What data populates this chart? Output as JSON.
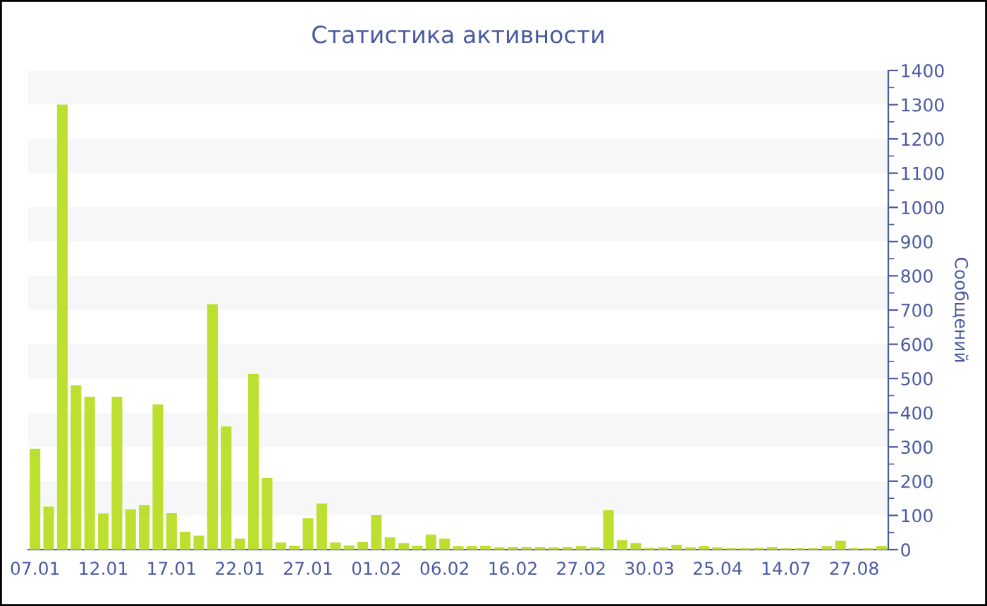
{
  "chart_data": {
    "type": "bar",
    "title": "Статистика активности",
    "ylabel": "Сообщений",
    "categories": [
      "07.01",
      null,
      null,
      null,
      null,
      "12.01",
      null,
      null,
      null,
      null,
      "17.01",
      null,
      null,
      null,
      null,
      "22.01",
      null,
      null,
      null,
      null,
      "27.01",
      null,
      null,
      null,
      null,
      "01.02",
      null,
      null,
      null,
      null,
      "06.02",
      null,
      null,
      null,
      null,
      "16.02",
      null,
      null,
      null,
      null,
      "27.02",
      null,
      null,
      null,
      null,
      "30.03",
      null,
      null,
      null,
      null,
      "25.04",
      null,
      null,
      null,
      null,
      "14.07",
      null,
      null,
      null,
      null,
      "27.08",
      null,
      null
    ],
    "values": [
      295,
      126,
      1300,
      480,
      447,
      106,
      447,
      118,
      130,
      424,
      107,
      52,
      41,
      717,
      360,
      32,
      513,
      210,
      21,
      11,
      92,
      135,
      21,
      12,
      23,
      101,
      36,
      19,
      11,
      44,
      32,
      10,
      10,
      11,
      7,
      8,
      8,
      8,
      7,
      8,
      10,
      7,
      115,
      28,
      19,
      5,
      7,
      14,
      7,
      10,
      7,
      4,
      4,
      5,
      8,
      4,
      4,
      4,
      10,
      26,
      4,
      4,
      10
    ],
    "color": "#bde030",
    "ylim": [
      0,
      1400
    ],
    "yticks": [
      0,
      100,
      200,
      300,
      400,
      500,
      600,
      700,
      800,
      900,
      1000,
      1100,
      1200,
      1300,
      1400
    ],
    "bands": [
      {
        "axis": "y",
        "from": 100,
        "to": 200,
        "color": "#f7f7f7"
      },
      {
        "axis": "y",
        "from": 300,
        "to": 400,
        "color": "#f7f7f7"
      },
      {
        "axis": "y",
        "from": 500,
        "to": 600,
        "color": "#f7f7f7"
      },
      {
        "axis": "y",
        "from": 700,
        "to": 800,
        "color": "#f7f7f7"
      },
      {
        "axis": "y",
        "from": 900,
        "to": 1000,
        "color": "#f7f7f7"
      },
      {
        "axis": "y",
        "from": 1100,
        "to": 1200,
        "color": "#f7f7f7"
      },
      {
        "axis": "y",
        "from": 1300,
        "to": 1400,
        "color": "#f7f7f7"
      }
    ]
  }
}
